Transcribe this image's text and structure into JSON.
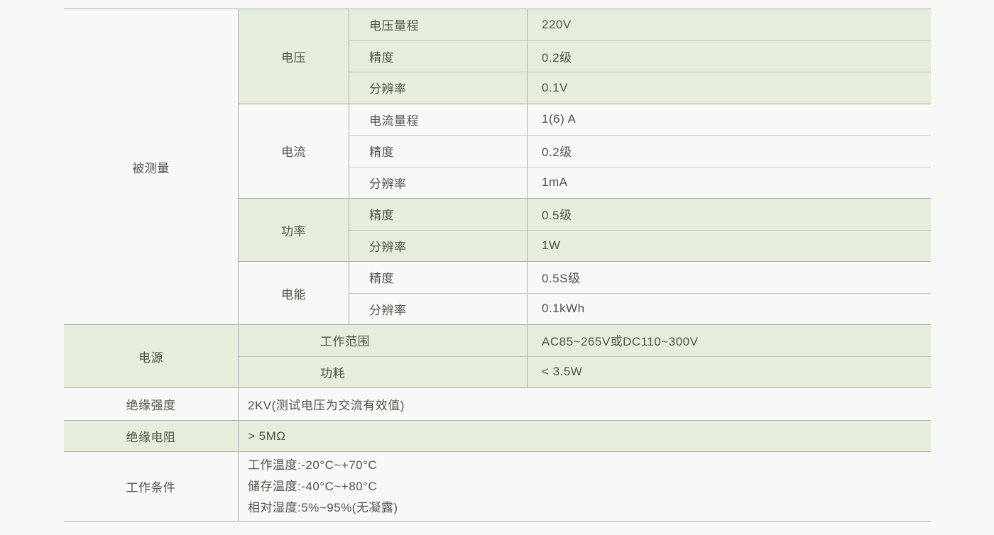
{
  "measured": {
    "label": "被测量",
    "groups": [
      {
        "name": "电压",
        "rows": [
          {
            "param": "电压量程",
            "value": "220V"
          },
          {
            "param": "精度",
            "value": "0.2级"
          },
          {
            "param": "分辨率",
            "value": "0.1V"
          }
        ]
      },
      {
        "name": "电流",
        "rows": [
          {
            "param": "电流量程",
            "value": "1(6) A"
          },
          {
            "param": "精度",
            "value": "0.2级"
          },
          {
            "param": "分辨率",
            "value": "1mA"
          }
        ]
      },
      {
        "name": "功率",
        "rows": [
          {
            "param": "精度",
            "value": "0.5级"
          },
          {
            "param": "分辨率",
            "value": "1W"
          }
        ]
      },
      {
        "name": "电能",
        "rows": [
          {
            "param": "精度",
            "value": "0.5S级"
          },
          {
            "param": "分辨率",
            "value": "0.1kWh"
          }
        ]
      }
    ]
  },
  "supply": {
    "label": "电源",
    "rows": [
      {
        "param": "工作范围",
        "value": "AC85~265V或DC110~300V"
      },
      {
        "param": "功耗",
        "value": "< 3.5W"
      }
    ]
  },
  "insulation_strength": {
    "label": "绝缘强度",
    "value": "2KV(测试电压为交流有效值)"
  },
  "insulation_resistance": {
    "label": "绝缘电阻",
    "value": "> 5MΩ"
  },
  "working_conditions": {
    "label": "工作条件",
    "lines": [
      "工作温度:-20°C~+70°C",
      "储存温度:-40°C~+80°C",
      "相对湿度:5%~95%(无凝露)"
    ]
  },
  "colors": {
    "row_green": "#e5eedb",
    "row_white": "#f8f8f7",
    "border_main": "#aeaea7",
    "border_sub": "#c4c4bc",
    "text": "#53534e"
  }
}
